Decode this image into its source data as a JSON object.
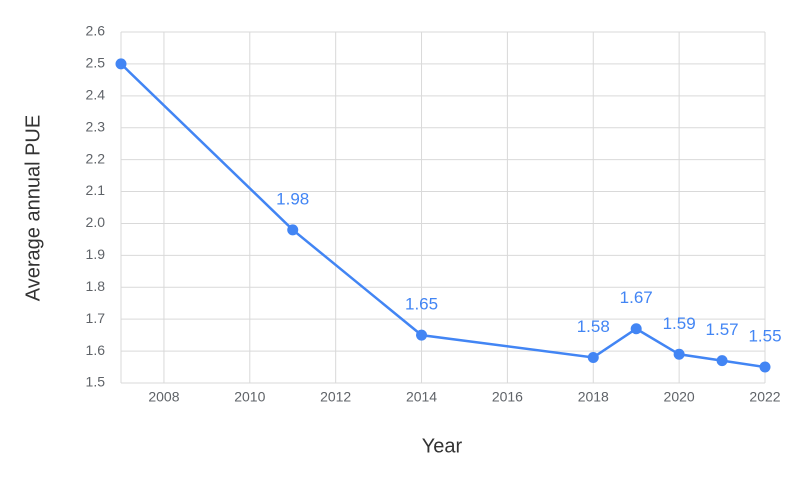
{
  "chart_data": {
    "type": "line",
    "x_label": "Year",
    "y_label": "Average annual PUE",
    "x": [
      2007,
      2011,
      2014,
      2018,
      2019,
      2020,
      2021,
      2022
    ],
    "series": [
      {
        "name": "Average annual PUE",
        "color": "#4285f4",
        "values": [
          2.5,
          1.98,
          1.65,
          1.58,
          1.67,
          1.59,
          1.57,
          1.55
        ],
        "value_labels": [
          null,
          "1.98",
          "1.65",
          "1.58",
          "1.67",
          "1.59",
          "1.57",
          "1.55"
        ]
      }
    ],
    "xlim": [
      2007,
      2022
    ],
    "xticks": [
      2008,
      2010,
      2012,
      2014,
      2016,
      2018,
      2020,
      2022
    ],
    "ylim": [
      1.5,
      2.6
    ],
    "yticks": [
      1.5,
      1.6,
      1.7,
      1.8,
      1.9,
      {
        "value": 2,
        "label": "2.0"
      },
      2.1,
      2.2,
      2.3,
      2.4,
      2.5,
      2.6
    ],
    "grid": true,
    "legend": false
  }
}
